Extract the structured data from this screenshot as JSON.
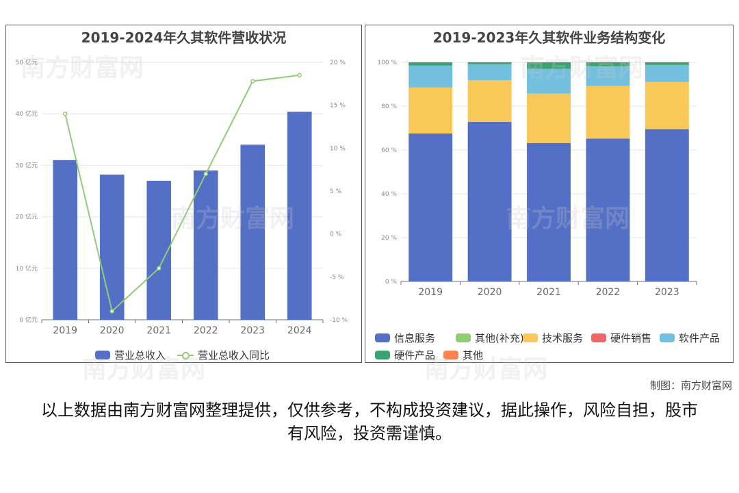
{
  "credit": "制图：南方财富网",
  "disclaimer": "以上数据由南方财富网整理提供，仅供参考，不构成投资建议，据此操作，风险自担，股市有风险，投资需谨慎。",
  "watermark_text": "南方财富网",
  "chart_data": [
    {
      "type": "bar",
      "title": "2019-2024年久其软件营收状况",
      "categories": [
        "2019",
        "2020",
        "2021",
        "2022",
        "2023",
        "2024"
      ],
      "series": [
        {
          "name": "营业总收入",
          "type": "bar",
          "axis": "left",
          "values": [
            31.0,
            28.2,
            27.0,
            29.0,
            34.0,
            40.4
          ],
          "color": "#5470c6"
        },
        {
          "name": "营业总收入同比",
          "type": "line",
          "axis": "right",
          "values": [
            14.0,
            -9.0,
            -4.0,
            7.0,
            17.8,
            18.5
          ],
          "color": "#91cc75"
        }
      ],
      "y_left": {
        "min": 0,
        "max": 50,
        "ticks": [
          0,
          10,
          20,
          30,
          40,
          50
        ],
        "tick_labels": [
          "0 亿元",
          "10 亿元",
          "20 亿元",
          "30 亿元",
          "40 亿元",
          "50 亿元"
        ]
      },
      "y_right": {
        "min": -10,
        "max": 20,
        "ticks": [
          -10,
          -5,
          0,
          5,
          10,
          15,
          20
        ],
        "tick_labels": [
          "-10 %",
          "-5 %",
          "0 %",
          "5 %",
          "10 %",
          "15 %",
          "20 %"
        ]
      },
      "grid": true,
      "legend": "bottom"
    },
    {
      "type": "bar",
      "stacked": true,
      "title": "2019-2023年久其软件业务结构变化",
      "categories": [
        "2019",
        "2020",
        "2021",
        "2022",
        "2023"
      ],
      "series": [
        {
          "name": "信息服务",
          "values": [
            67.5,
            72.8,
            63.2,
            65.2,
            69.5
          ],
          "color": "#5470c6"
        },
        {
          "name": "其他(补充)",
          "values": [
            0,
            0,
            0,
            0,
            0
          ],
          "color": "#91cc75"
        },
        {
          "name": "技术服务",
          "values": [
            21.0,
            19.0,
            22.5,
            24.0,
            21.5
          ],
          "color": "#fac858"
        },
        {
          "name": "硬件销售",
          "values": [
            0,
            0,
            0,
            0,
            0
          ],
          "color": "#ee6666"
        },
        {
          "name": "软件产品",
          "values": [
            10.0,
            7.2,
            11.3,
            9.0,
            7.8
          ],
          "color": "#73c0de"
        },
        {
          "name": "硬件产品",
          "values": [
            1.5,
            1.0,
            3.0,
            1.8,
            1.2
          ],
          "color": "#3ba272"
        },
        {
          "name": "其他",
          "values": [
            0,
            0,
            0,
            0,
            0
          ],
          "color": "#fc8452"
        }
      ],
      "y": {
        "min": 0,
        "max": 100,
        "ticks": [
          0,
          20,
          40,
          60,
          80,
          100
        ],
        "tick_labels": [
          "0 %",
          "20 %",
          "40 %",
          "60 %",
          "80 %",
          "100 %"
        ]
      },
      "grid": true,
      "legend": "bottom"
    }
  ]
}
